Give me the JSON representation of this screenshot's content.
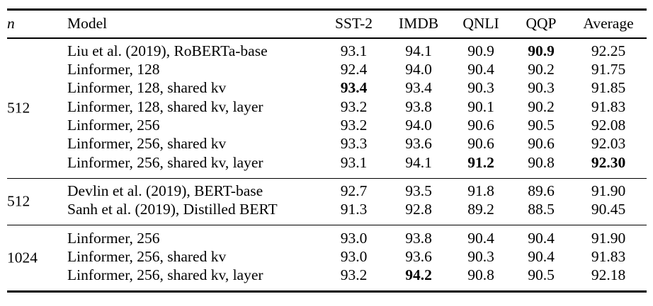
{
  "table": {
    "header": {
      "n": "n",
      "model": "Model",
      "metrics": [
        "SST-2",
        "IMDB",
        "QNLI",
        "QQP",
        "Average"
      ]
    },
    "groups": [
      {
        "n": "512",
        "rows": [
          {
            "model": "Liu et al. (2019), RoBERTa-base",
            "values": [
              "93.1",
              "94.1",
              "90.9",
              "90.9",
              "92.25"
            ],
            "bold": [
              3
            ]
          },
          {
            "model": "Linformer, 128",
            "values": [
              "92.4",
              "94.0",
              "90.4",
              "90.2",
              "91.75"
            ],
            "bold": []
          },
          {
            "model": "Linformer, 128, shared kv",
            "values": [
              "93.4",
              "93.4",
              "90.3",
              "90.3",
              "91.85"
            ],
            "bold": [
              0
            ]
          },
          {
            "model": "Linformer, 128, shared kv, layer",
            "values": [
              "93.2",
              "93.8",
              "90.1",
              "90.2",
              "91.83"
            ],
            "bold": []
          },
          {
            "model": "Linformer, 256",
            "values": [
              "93.2",
              "94.0",
              "90.6",
              "90.5",
              "92.08"
            ],
            "bold": []
          },
          {
            "model": "Linformer, 256, shared kv",
            "values": [
              "93.3",
              "93.6",
              "90.6",
              "90.6",
              "92.03"
            ],
            "bold": []
          },
          {
            "model": "Linformer, 256, shared kv, layer",
            "values": [
              "93.1",
              "94.1",
              "91.2",
              "90.8",
              "92.30"
            ],
            "bold": [
              2,
              4
            ]
          }
        ]
      },
      {
        "n": "512",
        "rows": [
          {
            "model": "Devlin et al. (2019), BERT-base",
            "values": [
              "92.7",
              "93.5",
              "91.8",
              "89.6",
              "91.90"
            ],
            "bold": []
          },
          {
            "model": "Sanh et al. (2019), Distilled BERT",
            "values": [
              "91.3",
              "92.8",
              "89.2",
              "88.5",
              "90.45"
            ],
            "bold": []
          }
        ]
      },
      {
        "n": "1024",
        "rows": [
          {
            "model": "Linformer, 256",
            "values": [
              "93.0",
              "93.8",
              "90.4",
              "90.4",
              "91.90"
            ],
            "bold": []
          },
          {
            "model": "Linformer, 256, shared kv",
            "values": [
              "93.0",
              "93.6",
              "90.3",
              "90.4",
              "91.83"
            ],
            "bold": []
          },
          {
            "model": "Linformer, 256, shared kv, layer",
            "values": [
              "93.2",
              "94.2",
              "90.8",
              "90.5",
              "92.18"
            ],
            "bold": [
              1
            ]
          }
        ]
      }
    ]
  }
}
